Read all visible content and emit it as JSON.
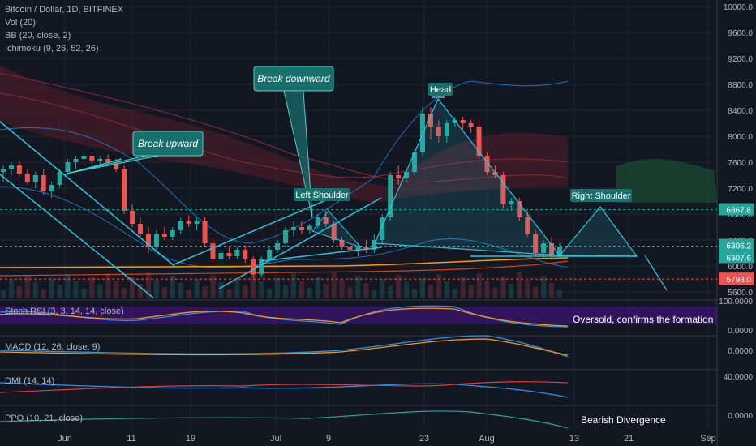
{
  "header": {
    "symbol": "Bitcoin / Dollar, 1D, BITFINEX",
    "indicators": [
      "Vol (20)",
      "BB (20, close, 2)",
      "Ichimoku (9, 26, 52, 26)"
    ]
  },
  "panes": {
    "stoch_rsi": {
      "label": "Stoch RSI (3, 3, 14, 14, close)",
      "ticks": [
        "100.0000",
        "0.0000"
      ]
    },
    "macd": {
      "label": "MACD (12, 26, close, 9)",
      "ticks": [
        "0.0000"
      ]
    },
    "dmi": {
      "label": "DMI (14, 14)",
      "ticks": [
        "40.0000"
      ]
    },
    "ppo": {
      "label": "PPO (10, 21, close)",
      "ticks": [
        "0.0000"
      ]
    }
  },
  "annotations": {
    "break_upward": "Break upward",
    "break_downward": "Break downward",
    "head": "Head",
    "left_shoulder": "Left Shoulder",
    "right_shoulder": "Right Shoulder",
    "oversold": "Oversold, confirms the formation",
    "bearish_divergence": "Bearish Divergence"
  },
  "chart_data": {
    "type": "candlestick",
    "price_axis": [
      "10000.0",
      "9600.0",
      "9200.0",
      "8800.0",
      "8400.0",
      "8000.0",
      "7600.0",
      "7200.0",
      "6800.0",
      "6400.0",
      "6000.0",
      "5600.0"
    ],
    "ylim": [
      5500,
      10100
    ],
    "x_ticks": [
      "Jun",
      "11",
      "19",
      "Jul",
      "9",
      "23",
      "Aug",
      "13",
      "21",
      "Sep"
    ],
    "price_labels": [
      {
        "value": "6867.8",
        "color": "#26a69a"
      },
      {
        "value": "6306.2",
        "color": "#26a69a"
      },
      {
        "value": "6307.6",
        "color": "#26a69a"
      },
      {
        "value": "5798.0",
        "color": "#ef5350"
      }
    ],
    "candles": [
      [
        7450,
        7550,
        7300,
        7500
      ],
      [
        7500,
        7600,
        7400,
        7550
      ],
      [
        7550,
        7620,
        7380,
        7420
      ],
      [
        7420,
        7500,
        7250,
        7300
      ],
      [
        7300,
        7450,
        7200,
        7400
      ],
      [
        7400,
        7500,
        7100,
        7150
      ],
      [
        7150,
        7300,
        7050,
        7250
      ],
      [
        7250,
        7500,
        7200,
        7450
      ],
      [
        7450,
        7650,
        7400,
        7600
      ],
      [
        7600,
        7700,
        7500,
        7650
      ],
      [
        7650,
        7750,
        7550,
        7700
      ],
      [
        7700,
        7760,
        7580,
        7620
      ],
      [
        7620,
        7700,
        7520,
        7650
      ],
      [
        7650,
        7720,
        7560,
        7600
      ],
      [
        7600,
        7650,
        7450,
        7500
      ],
      [
        7500,
        7550,
        6800,
        6850
      ],
      [
        6850,
        6950,
        6600,
        6650
      ],
      [
        6650,
        6750,
        6450,
        6500
      ],
      [
        6500,
        6600,
        6200,
        6300
      ],
      [
        6300,
        6550,
        6250,
        6500
      ],
      [
        6500,
        6600,
        6400,
        6450
      ],
      [
        6450,
        6600,
        6400,
        6550
      ],
      [
        6550,
        6750,
        6500,
        6700
      ],
      [
        6700,
        6780,
        6600,
        6650
      ],
      [
        6650,
        6750,
        6550,
        6700
      ],
      [
        6700,
        6750,
        6300,
        6350
      ],
      [
        6350,
        6450,
        6050,
        6100
      ],
      [
        6100,
        6250,
        6000,
        6200
      ],
      [
        6200,
        6300,
        6100,
        6150
      ],
      [
        6150,
        6300,
        6100,
        6250
      ],
      [
        6250,
        6320,
        6050,
        6100
      ],
      [
        6100,
        6150,
        5820,
        5870
      ],
      [
        5870,
        6150,
        5820,
        6100
      ],
      [
        6100,
        6300,
        6050,
        6250
      ],
      [
        6250,
        6400,
        6200,
        6350
      ],
      [
        6350,
        6600,
        6300,
        6550
      ],
      [
        6550,
        6700,
        6450,
        6600
      ],
      [
        6600,
        6700,
        6500,
        6550
      ],
      [
        6550,
        6650,
        6500,
        6620
      ],
      [
        6620,
        6800,
        6580,
        6750
      ],
      [
        6750,
        6850,
        6600,
        6650
      ],
      [
        6650,
        6700,
        6350,
        6400
      ],
      [
        6400,
        6450,
        6250,
        6300
      ],
      [
        6300,
        6350,
        6200,
        6250
      ],
      [
        6250,
        6350,
        6150,
        6300
      ],
      [
        6300,
        6400,
        6200,
        6250
      ],
      [
        6250,
        6500,
        6200,
        6400
      ],
      [
        6400,
        6800,
        6350,
        6750
      ],
      [
        6750,
        7450,
        6700,
        7400
      ],
      [
        7400,
        7550,
        7250,
        7350
      ],
      [
        7350,
        7500,
        7300,
        7450
      ],
      [
        7450,
        7800,
        7400,
        7750
      ],
      [
        7750,
        8450,
        7700,
        8350
      ],
      [
        8350,
        8450,
        7950,
        8150
      ],
      [
        8150,
        8250,
        7900,
        8000
      ],
      [
        8000,
        8250,
        7900,
        8200
      ],
      [
        8200,
        8300,
        8150,
        8250
      ],
      [
        8250,
        8300,
        8100,
        8200
      ],
      [
        8200,
        8250,
        8050,
        8150
      ],
      [
        8150,
        8250,
        7650,
        7700
      ],
      [
        7700,
        7750,
        7400,
        7450
      ],
      [
        7450,
        7550,
        7350,
        7400
      ],
      [
        7400,
        7450,
        6900,
        6950
      ],
      [
        6950,
        7050,
        6850,
        7000
      ],
      [
        7000,
        7050,
        6700,
        6750
      ],
      [
        6750,
        6850,
        6450,
        6500
      ],
      [
        6500,
        6550,
        6150,
        6200
      ],
      [
        6200,
        6400,
        6100,
        6350
      ],
      [
        6350,
        6450,
        6100,
        6150
      ],
      [
        6150,
        6350,
        6100,
        6300
      ]
    ]
  }
}
